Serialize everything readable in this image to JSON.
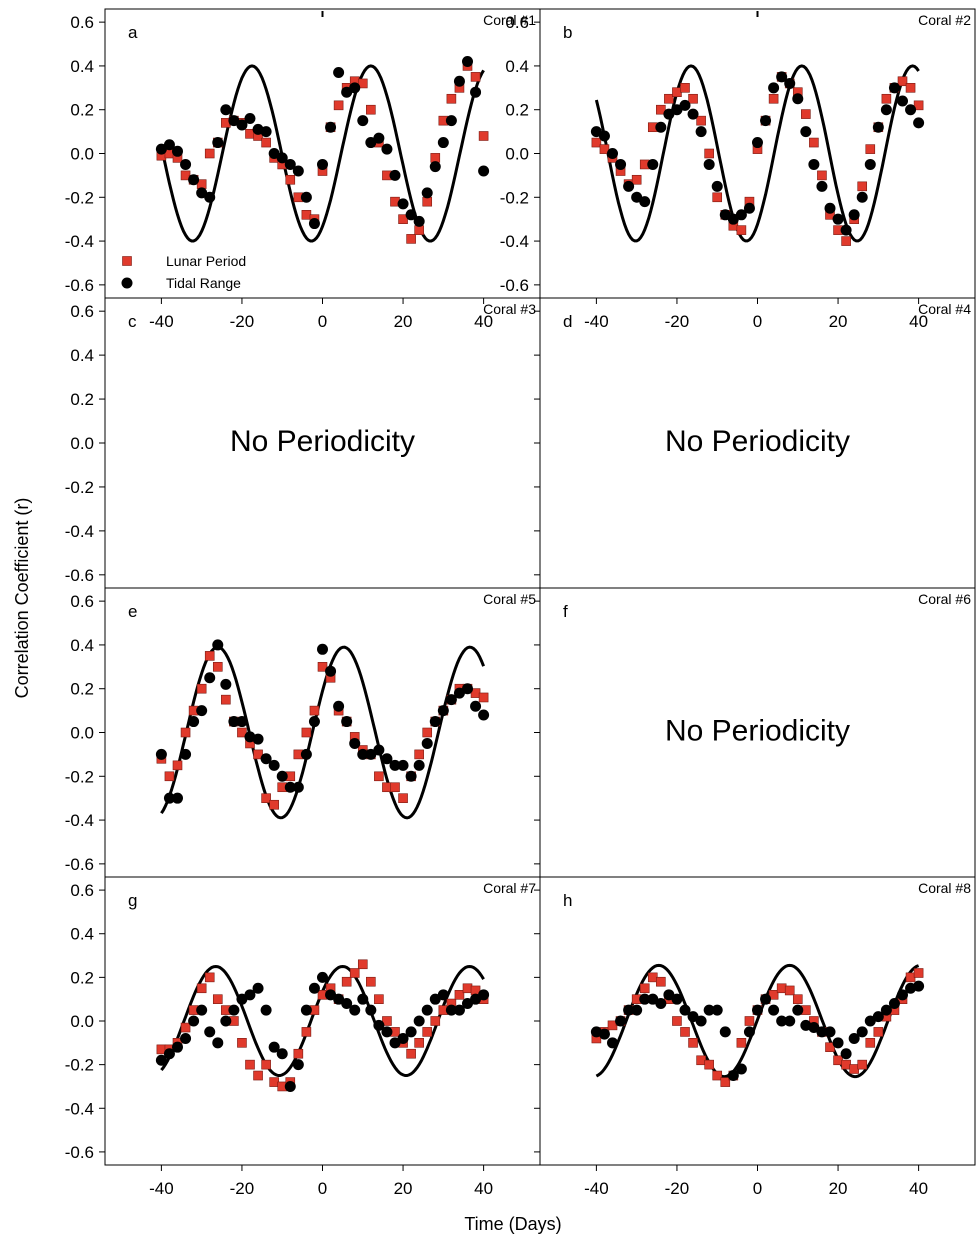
{
  "figure": {
    "y_axis_label": "Correlation Coefficient (r)",
    "x_axis_label": "Time (Days)"
  },
  "legend": [
    {
      "label": "Lunar Period",
      "color": "#e03a2c",
      "marker": "square"
    },
    {
      "label": "Tidal Range",
      "color": "#000000",
      "marker": "circle"
    }
  ],
  "chart_data": [
    {
      "type": "scatter",
      "panel": "a",
      "title": "Coral #1",
      "xlim": [
        -54,
        54
      ],
      "ylim": [
        -0.66,
        0.66
      ],
      "x_ticks": [
        "-40",
        "-20",
        "0",
        "20",
        "40"
      ],
      "y_ticks": [
        "0.6",
        "0.4",
        "0.2",
        "0.0",
        "-0.2",
        "-0.4",
        "-0.6"
      ],
      "model": {
        "amplitude": 0.4,
        "period": 29.5,
        "peak_at": -17.5
      },
      "series": [
        {
          "name": "Lunar Period",
          "x": [
            -40,
            -38,
            -36,
            -34,
            -32,
            -30,
            -28,
            -26,
            -24,
            -22,
            -20,
            -18,
            -16,
            -14,
            -12,
            -10,
            -8,
            -6,
            -4,
            -2,
            0,
            2,
            4,
            6,
            8,
            10,
            12,
            14,
            16,
            18,
            20,
            22,
            24,
            26,
            28,
            30,
            32,
            34,
            36,
            38,
            40
          ],
          "y": [
            -0.01,
            0.0,
            -0.02,
            -0.1,
            -0.12,
            -0.14,
            0.0,
            0.05,
            0.14,
            0.15,
            0.14,
            0.09,
            0.08,
            0.05,
            -0.02,
            -0.05,
            -0.12,
            -0.2,
            -0.28,
            -0.3,
            -0.08,
            0.12,
            0.22,
            0.3,
            0.33,
            0.32,
            0.2,
            0.05,
            -0.1,
            -0.22,
            -0.3,
            -0.39,
            -0.35,
            -0.22,
            -0.02,
            0.15,
            0.25,
            0.3,
            0.4,
            0.35,
            0.08
          ]
        },
        {
          "name": "Tidal Range",
          "x": [
            -40,
            -38,
            -36,
            -34,
            -32,
            -30,
            -28,
            -26,
            -24,
            -22,
            -20,
            -18,
            -16,
            -14,
            -12,
            -10,
            -8,
            -6,
            -4,
            -2,
            0,
            2,
            4,
            6,
            8,
            10,
            12,
            14,
            16,
            18,
            20,
            22,
            24,
            26,
            28,
            30,
            32,
            34,
            36,
            38,
            40
          ],
          "y": [
            0.02,
            0.04,
            0.01,
            -0.05,
            -0.12,
            -0.18,
            -0.2,
            0.05,
            0.2,
            0.15,
            0.13,
            0.16,
            0.11,
            0.1,
            0.0,
            -0.02,
            -0.05,
            -0.08,
            -0.2,
            -0.32,
            -0.05,
            0.12,
            0.37,
            0.28,
            0.3,
            0.15,
            0.05,
            0.07,
            0.02,
            -0.1,
            -0.23,
            -0.28,
            -0.31,
            -0.18,
            -0.06,
            0.05,
            0.15,
            0.33,
            0.42,
            0.28,
            -0.08
          ]
        }
      ]
    },
    {
      "type": "scatter",
      "panel": "b",
      "title": "Coral #2",
      "xlim": [
        -54,
        54
      ],
      "ylim": [
        -0.66,
        0.66
      ],
      "x_ticks": [
        "-40",
        "-20",
        "0",
        "20",
        "40"
      ],
      "y_ticks": [
        "0.6",
        "0.4",
        "0.2",
        "0.0",
        "-0.2",
        "-0.4",
        "-0.6"
      ],
      "model": {
        "amplitude": 0.4,
        "period": 27.5,
        "peak_at": -16.5
      },
      "series": [
        {
          "name": "Lunar Period",
          "x": [
            -40,
            -38,
            -36,
            -34,
            -32,
            -30,
            -28,
            -26,
            -24,
            -22,
            -20,
            -18,
            -16,
            -14,
            -12,
            -10,
            -8,
            -6,
            -4,
            -2,
            0,
            2,
            4,
            6,
            8,
            10,
            12,
            14,
            16,
            18,
            20,
            22,
            24,
            26,
            28,
            30,
            32,
            34,
            36,
            38,
            40
          ],
          "y": [
            0.05,
            0.02,
            -0.02,
            -0.08,
            -0.14,
            -0.12,
            -0.05,
            0.12,
            0.2,
            0.25,
            0.28,
            0.3,
            0.25,
            0.15,
            0.0,
            -0.2,
            -0.28,
            -0.33,
            -0.35,
            -0.22,
            0.02,
            0.15,
            0.25,
            0.35,
            0.32,
            0.28,
            0.18,
            0.05,
            -0.1,
            -0.28,
            -0.35,
            -0.4,
            -0.3,
            -0.15,
            0.02,
            0.12,
            0.25,
            0.3,
            0.33,
            0.3,
            0.22
          ]
        },
        {
          "name": "Tidal Range",
          "x": [
            -40,
            -38,
            -36,
            -34,
            -32,
            -30,
            -28,
            -26,
            -24,
            -22,
            -20,
            -18,
            -16,
            -14,
            -12,
            -10,
            -8,
            -6,
            -4,
            -2,
            0,
            2,
            4,
            6,
            8,
            10,
            12,
            14,
            16,
            18,
            20,
            22,
            24,
            26,
            28,
            30,
            32,
            34,
            36,
            38,
            40
          ],
          "y": [
            0.1,
            0.08,
            0.0,
            -0.05,
            -0.15,
            -0.2,
            -0.22,
            -0.05,
            0.12,
            0.18,
            0.2,
            0.22,
            0.18,
            0.1,
            -0.05,
            -0.15,
            -0.28,
            -0.3,
            -0.28,
            -0.25,
            0.05,
            0.15,
            0.3,
            0.35,
            0.32,
            0.25,
            0.1,
            -0.05,
            -0.15,
            -0.25,
            -0.3,
            -0.35,
            -0.28,
            -0.2,
            -0.05,
            0.12,
            0.2,
            0.3,
            0.24,
            0.2,
            0.14
          ]
        }
      ]
    },
    {
      "type": "scatter",
      "panel": "c",
      "title": "Coral #3",
      "annotation": "No Periodicity",
      "xlim": [
        -54,
        54
      ],
      "ylim": [
        -0.66,
        0.66
      ],
      "y_ticks": [
        "0.6",
        "0.4",
        "0.2",
        "0.0",
        "-0.2",
        "-0.4",
        "-0.6"
      ],
      "series": []
    },
    {
      "type": "scatter",
      "panel": "d",
      "title": "Coral #4",
      "annotation": "No Periodicity",
      "xlim": [
        -54,
        54
      ],
      "ylim": [
        -0.66,
        0.66
      ],
      "series": []
    },
    {
      "type": "scatter",
      "panel": "e",
      "title": "Coral #5",
      "xlim": [
        -54,
        54
      ],
      "ylim": [
        -0.66,
        0.66
      ],
      "y_ticks": [
        "0.6",
        "0.4",
        "0.2",
        "0.0",
        "-0.2",
        "-0.4",
        "-0.6"
      ],
      "model": {
        "amplitude": 0.39,
        "period": 31.3,
        "peak_at": -26
      },
      "series": [
        {
          "name": "Lunar Period",
          "x": [
            -40,
            -38,
            -36,
            -34,
            -32,
            -30,
            -28,
            -26,
            -24,
            -22,
            -20,
            -18,
            -16,
            -14,
            -12,
            -10,
            -8,
            -6,
            -4,
            -2,
            0,
            2,
            4,
            6,
            8,
            10,
            12,
            14,
            16,
            18,
            20,
            22,
            24,
            26,
            28,
            30,
            32,
            34,
            36,
            38,
            40
          ],
          "y": [
            -0.12,
            -0.2,
            -0.15,
            0.0,
            0.1,
            0.2,
            0.35,
            0.3,
            0.15,
            0.05,
            0.0,
            -0.05,
            -0.1,
            -0.3,
            -0.33,
            -0.25,
            -0.2,
            -0.1,
            0.0,
            0.1,
            0.3,
            0.25,
            0.1,
            0.05,
            -0.02,
            -0.08,
            -0.1,
            -0.2,
            -0.25,
            -0.25,
            -0.3,
            -0.2,
            -0.1,
            0.0,
            0.05,
            0.1,
            0.15,
            0.2,
            0.2,
            0.18,
            0.16
          ]
        },
        {
          "name": "Tidal Range",
          "x": [
            -40,
            -38,
            -36,
            -34,
            -32,
            -30,
            -28,
            -26,
            -24,
            -22,
            -20,
            -18,
            -16,
            -14,
            -12,
            -10,
            -8,
            -6,
            -4,
            -2,
            0,
            2,
            4,
            6,
            8,
            10,
            12,
            14,
            16,
            18,
            20,
            22,
            24,
            26,
            28,
            30,
            32,
            34,
            36,
            38,
            40
          ],
          "y": [
            -0.1,
            -0.3,
            -0.3,
            -0.1,
            0.05,
            0.1,
            0.25,
            0.4,
            0.22,
            0.05,
            0.05,
            -0.02,
            -0.03,
            -0.12,
            -0.15,
            -0.2,
            -0.25,
            -0.25,
            -0.1,
            0.05,
            0.38,
            0.28,
            0.12,
            0.05,
            -0.05,
            -0.1,
            -0.1,
            -0.08,
            -0.12,
            -0.15,
            -0.15,
            -0.2,
            -0.15,
            -0.05,
            0.05,
            0.1,
            0.15,
            0.18,
            0.2,
            0.12,
            0.08
          ]
        }
      ]
    },
    {
      "type": "scatter",
      "panel": "f",
      "title": "Coral #6",
      "annotation": "No Periodicity",
      "xlim": [
        -54,
        54
      ],
      "ylim": [
        -0.66,
        0.66
      ],
      "series": []
    },
    {
      "type": "scatter",
      "panel": "g",
      "title": "Coral #7",
      "xlim": [
        -54,
        54
      ],
      "ylim": [
        -0.66,
        0.66
      ],
      "x_ticks": [
        "-40",
        "-20",
        "0",
        "20",
        "40"
      ],
      "y_ticks": [
        "0.6",
        "0.4",
        "0.2",
        "0.0",
        "-0.2",
        "-0.4",
        "-0.6"
      ],
      "model": {
        "amplitude": 0.25,
        "period": 31.5,
        "peak_at": -26.5
      },
      "series": [
        {
          "name": "Lunar Period",
          "x": [
            -40,
            -38,
            -36,
            -34,
            -32,
            -30,
            -28,
            -26,
            -24,
            -22,
            -20,
            -18,
            -16,
            -14,
            -12,
            -10,
            -8,
            -6,
            -4,
            -2,
            0,
            2,
            4,
            6,
            8,
            10,
            12,
            14,
            16,
            18,
            20,
            22,
            24,
            26,
            28,
            30,
            32,
            34,
            36,
            38,
            40
          ],
          "y": [
            -0.13,
            -0.13,
            -0.1,
            -0.03,
            0.05,
            0.15,
            0.2,
            0.1,
            0.05,
            0.0,
            -0.1,
            -0.2,
            -0.25,
            -0.2,
            -0.28,
            -0.3,
            -0.28,
            -0.15,
            -0.05,
            0.05,
            0.12,
            0.15,
            0.1,
            0.18,
            0.22,
            0.26,
            0.18,
            0.1,
            0.0,
            -0.05,
            -0.1,
            -0.15,
            -0.1,
            -0.05,
            0.0,
            0.05,
            0.08,
            0.12,
            0.15,
            0.14,
            0.1
          ]
        },
        {
          "name": "Tidal Range",
          "x": [
            -40,
            -38,
            -36,
            -34,
            -32,
            -30,
            -28,
            -26,
            -24,
            -22,
            -20,
            -18,
            -16,
            -14,
            -12,
            -10,
            -8,
            -6,
            -4,
            -2,
            0,
            2,
            4,
            6,
            8,
            10,
            12,
            14,
            16,
            18,
            20,
            22,
            24,
            26,
            28,
            30,
            32,
            34,
            36,
            38,
            40
          ],
          "y": [
            -0.18,
            -0.15,
            -0.12,
            -0.08,
            0.0,
            0.05,
            -0.05,
            -0.1,
            0.0,
            0.05,
            0.1,
            0.12,
            0.15,
            0.05,
            -0.12,
            -0.15,
            -0.3,
            -0.2,
            0.05,
            0.15,
            0.2,
            0.12,
            0.1,
            0.08,
            0.05,
            0.1,
            0.05,
            -0.02,
            -0.05,
            -0.1,
            -0.08,
            -0.05,
            0.0,
            0.05,
            0.1,
            0.12,
            0.05,
            0.05,
            0.08,
            0.1,
            0.12
          ]
        }
      ]
    },
    {
      "type": "scatter",
      "panel": "h",
      "title": "Coral #8",
      "xlim": [
        -54,
        54
      ],
      "ylim": [
        -0.66,
        0.66
      ],
      "x_ticks": [
        "-40",
        "-20",
        "0",
        "20",
        "40"
      ],
      "model": {
        "amplitude": 0.255,
        "period": 32.5,
        "peak_at": -24.5
      },
      "series": [
        {
          "name": "Lunar Period",
          "x": [
            -40,
            -38,
            -36,
            -34,
            -32,
            -30,
            -28,
            -26,
            -24,
            -22,
            -20,
            -18,
            -16,
            -14,
            -12,
            -10,
            -8,
            -6,
            -4,
            -2,
            0,
            2,
            4,
            6,
            8,
            10,
            12,
            14,
            16,
            18,
            20,
            22,
            24,
            26,
            28,
            30,
            32,
            34,
            36,
            38,
            40
          ],
          "y": [
            -0.08,
            -0.05,
            -0.02,
            0.0,
            0.05,
            0.1,
            0.15,
            0.2,
            0.18,
            0.1,
            0.0,
            -0.05,
            -0.1,
            -0.18,
            -0.2,
            -0.25,
            -0.28,
            -0.25,
            -0.1,
            0.0,
            0.05,
            0.1,
            0.12,
            0.15,
            0.14,
            0.1,
            0.05,
            0.0,
            -0.05,
            -0.12,
            -0.18,
            -0.2,
            -0.22,
            -0.2,
            -0.1,
            -0.05,
            0.02,
            0.05,
            0.1,
            0.2,
            0.22
          ]
        },
        {
          "name": "Tidal Range",
          "x": [
            -40,
            -38,
            -36,
            -34,
            -32,
            -30,
            -28,
            -26,
            -24,
            -22,
            -20,
            -18,
            -16,
            -14,
            -12,
            -10,
            -8,
            -6,
            -4,
            -2,
            0,
            2,
            4,
            6,
            8,
            10,
            12,
            14,
            16,
            18,
            20,
            22,
            24,
            26,
            28,
            30,
            32,
            34,
            36,
            38,
            40
          ],
          "y": [
            -0.05,
            -0.06,
            -0.1,
            0.0,
            0.05,
            0.05,
            0.1,
            0.1,
            0.08,
            0.12,
            0.1,
            0.05,
            0.02,
            0.0,
            0.05,
            0.05,
            -0.05,
            -0.25,
            -0.22,
            -0.05,
            0.05,
            0.1,
            0.05,
            0.0,
            0.0,
            0.05,
            -0.02,
            -0.03,
            -0.05,
            -0.05,
            -0.1,
            -0.15,
            -0.08,
            -0.05,
            0.0,
            0.02,
            0.05,
            0.08,
            0.12,
            0.15,
            0.16
          ]
        }
      ]
    }
  ]
}
